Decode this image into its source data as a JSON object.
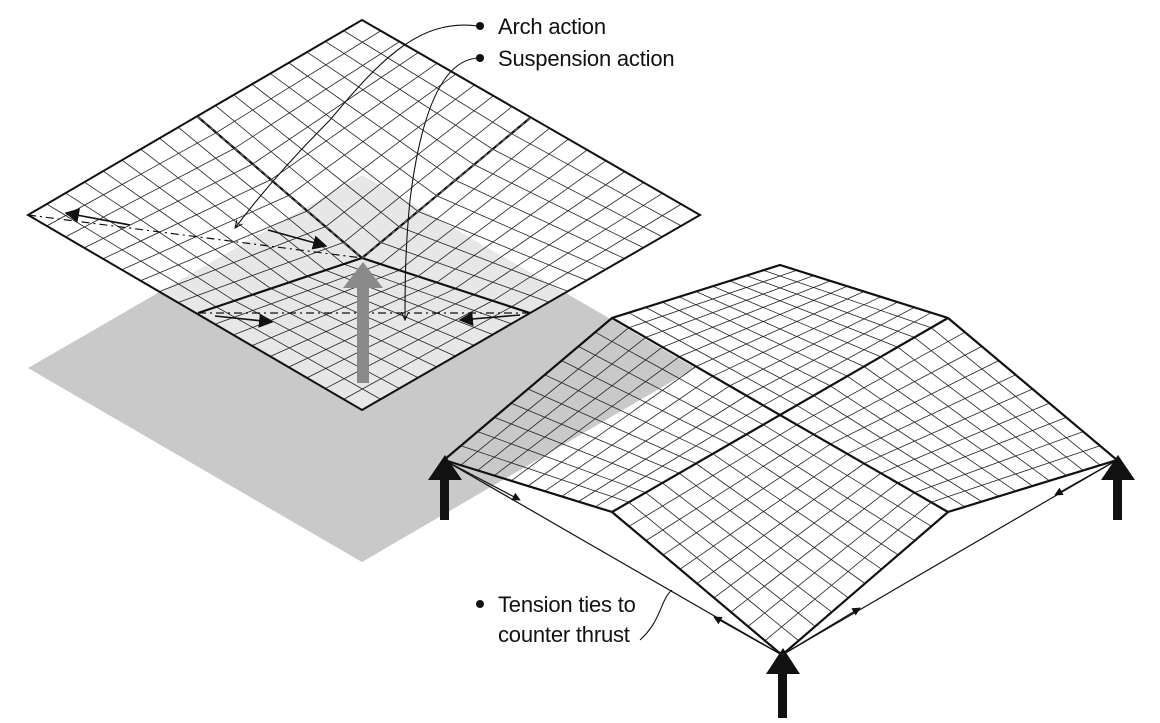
{
  "labels": {
    "arch_action": "Arch action",
    "suspension_action": "Suspension action",
    "tension_ties_line1": "Tension ties to",
    "tension_ties_line2": "counter thrust"
  },
  "colors": {
    "ink": "#111111",
    "shadow": "#c8c8c8",
    "arrow_fill": "#8a8a8a"
  }
}
